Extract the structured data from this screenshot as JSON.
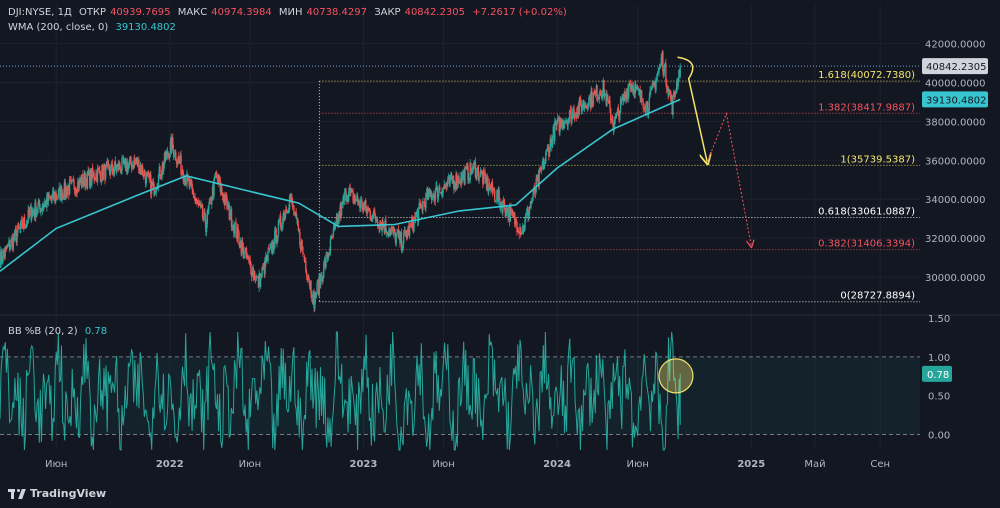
{
  "header": {
    "symbol": "DJI:NYSE, 1Д",
    "open_label": "ОТКР",
    "open": "40939.7695",
    "high_label": "МАКС",
    "high": "40974.3984",
    "low_label": "МИН",
    "low": "40738.4297",
    "close_label": "ЗАКР",
    "close": "40842.2305",
    "change": "+7.2617 (+0.02%)",
    "wma_label": "WMA (200, close, 0)",
    "wma_value": "39130.4802",
    "bb_label": "BB %B (20, 2)",
    "bb_value": "0.78"
  },
  "brand": {
    "name": "TradingView"
  },
  "colors": {
    "bg": "#131722",
    "up": "#26a69a",
    "down": "#ef5350",
    "wma": "#37c6d0",
    "fib_yellow": "#f5e46a",
    "fib_red": "#f7525f",
    "fib_white": "#ffffff",
    "osc": "#26a69a"
  },
  "chart_data": [
    {
      "type": "candlestick",
      "title": "DJI:NYSE, 1Д",
      "y_ticks": [
        30000,
        32000,
        34000,
        36000,
        38000,
        40000,
        42000
      ],
      "y_tick_labels": [
        "30000.0000",
        "32000.0000",
        "34000.0000",
        "36000.0000",
        "38000.0000",
        "40000.0000",
        "42000.0000"
      ],
      "x_tick_labels": [
        "Июн",
        "2022",
        "Июн",
        "2023",
        "Июн",
        "2024",
        "Июн",
        "2025",
        "Май",
        "Сен"
      ],
      "x_ticks": [
        "2021-06-01",
        "2022-01-01",
        "2022-06-01",
        "2023-01-01",
        "2023-06-01",
        "2024-01-01",
        "2024-06-01",
        "2025-01-01",
        "2025-05-01",
        "2025-09-01"
      ],
      "x_range": [
        "2021-02-15",
        "2025-11-15"
      ],
      "ylim": [
        28200,
        42700
      ],
      "series_points": [
        [
          "2021-02-15",
          30900
        ],
        [
          "2021-04-15",
          33300
        ],
        [
          "2021-06-01",
          34200
        ],
        [
          "2021-08-15",
          35300
        ],
        [
          "2021-11-01",
          35900
        ],
        [
          "2021-12-01",
          34500
        ],
        [
          "2022-01-04",
          36800
        ],
        [
          "2022-02-15",
          34200
        ],
        [
          "2022-03-10",
          32700
        ],
        [
          "2022-03-29",
          35200
        ],
        [
          "2022-05-20",
          31300
        ],
        [
          "2022-06-17",
          29700
        ],
        [
          "2022-08-16",
          34100
        ],
        [
          "2022-09-30",
          28800
        ],
        [
          "2022-11-30",
          34400
        ],
        [
          "2023-03-15",
          31800
        ],
        [
          "2023-05-01",
          34100
        ],
        [
          "2023-07-31",
          35600
        ],
        [
          "2023-10-27",
          32400
        ],
        [
          "2023-12-29",
          37700
        ],
        [
          "2024-03-28",
          39700
        ],
        [
          "2024-04-17",
          37800
        ],
        [
          "2024-05-17",
          40000
        ],
        [
          "2024-06-20",
          38800
        ],
        [
          "2024-07-17",
          41200
        ],
        [
          "2024-08-05",
          38800
        ],
        [
          "2024-08-20",
          40842
        ]
      ],
      "last_price": 40842.2305,
      "last_price_label": "40842.2305",
      "wma": {
        "name": "WMA (200, close, 0)",
        "value_label": "39130.4802",
        "points": [
          [
            "2021-02-15",
            30300
          ],
          [
            "2021-06-01",
            32500
          ],
          [
            "2021-11-01",
            34200
          ],
          [
            "2022-02-01",
            35200
          ],
          [
            "2022-06-01",
            34400
          ],
          [
            "2022-09-01",
            33800
          ],
          [
            "2022-11-15",
            32600
          ],
          [
            "2023-03-01",
            32700
          ],
          [
            "2023-07-01",
            33400
          ],
          [
            "2023-10-15",
            33700
          ],
          [
            "2024-01-01",
            35600
          ],
          [
            "2024-04-15",
            37600
          ],
          [
            "2024-08-20",
            39130
          ]
        ]
      },
      "fibonacci": [
        {
          "level": "1.618",
          "price": 40072.738,
          "label": "1.618(40072.7380)",
          "color": "yellow"
        },
        {
          "level": "1.382",
          "price": 38417.9887,
          "label": "1.382(38417.9887)",
          "color": "red"
        },
        {
          "level": "1",
          "price": 35739.5387,
          "label": "1(35739.5387)",
          "color": "yellow"
        },
        {
          "level": "0.618",
          "price": 33061.0887,
          "label": "0.618(33061.0887)",
          "color": "white"
        },
        {
          "level": "0.382",
          "price": 31406.3394,
          "label": "0.382(31406.3394)",
          "color": "red"
        },
        {
          "level": "0",
          "price": 28727.8894,
          "label": "0(28727.8894)",
          "color": "white"
        }
      ],
      "fib_anchor_start": "2022-10-10",
      "projections": [
        {
          "color": "yellow",
          "points": [
            [
              "2024-08-15",
              41300
            ],
            [
              "2024-09-05",
              40200
            ],
            [
              "2024-10-10",
              35900
            ]
          ]
        },
        {
          "color": "red",
          "points": [
            [
              "2024-10-10",
              35900
            ],
            [
              "2024-11-15",
              38400
            ],
            [
              "2025-01-01",
              31600
            ]
          ]
        }
      ]
    },
    {
      "type": "line",
      "title": "BB %B (20, 2)",
      "value_label": "0.78",
      "y_ticks": [
        0.0,
        0.5,
        1.0,
        1.5
      ],
      "y_tick_labels": [
        "0.00",
        "0.50",
        "1.00",
        "1.50"
      ],
      "bands": [
        0.0,
        1.0
      ],
      "ylim": [
        -0.2,
        1.5
      ],
      "highlight_circle_date": "2024-08-12",
      "highlight_circle_value": 0.78
    }
  ]
}
